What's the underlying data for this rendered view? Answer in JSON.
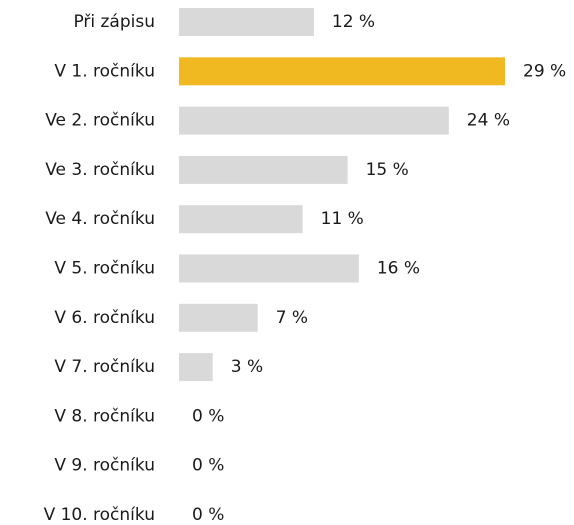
{
  "chart_data": {
    "type": "bar",
    "orientation": "horizontal",
    "categories": [
      "Při zápisu",
      "V 1. ročníku",
      "Ve 2. ročníku",
      "Ve 3. ročníku",
      "Ve 4. ročníku",
      "V 5. ročníku",
      "V 6. ročníku",
      "V 7. ročníku",
      "V 8. ročníku",
      "V 9. ročníku",
      "V 10. ročníku"
    ],
    "values": [
      12,
      29,
      24,
      15,
      11,
      16,
      7,
      3,
      0,
      0,
      0
    ],
    "value_labels": [
      "12 %",
      "29 %",
      "24 %",
      "15 %",
      "11 %",
      "16 %",
      "7 %",
      "3 %",
      "0 %",
      "0 %",
      "0 %"
    ],
    "colors": [
      "#d9d9d9",
      "#f0b922",
      "#d9d9d9",
      "#d9d9d9",
      "#d9d9d9",
      "#d9d9d9",
      "#d9d9d9",
      "#d9d9d9",
      "#d9d9d9",
      "#d9d9d9",
      "#d9d9d9"
    ]
  }
}
